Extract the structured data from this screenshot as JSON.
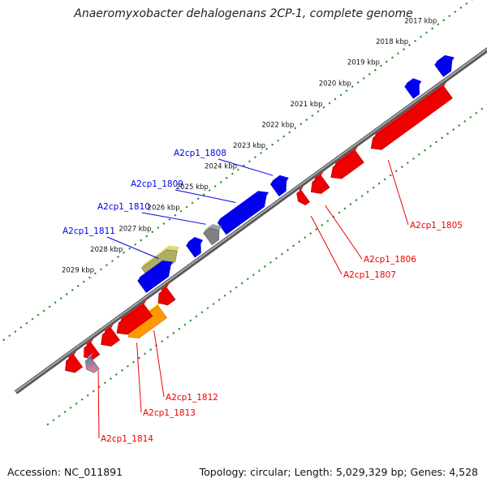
{
  "title": "Anaeromyxobacter dehalogenans 2CP-1, complete genome",
  "footer": {
    "accession": "Accession: NC_011891",
    "summary": "Topology: circular; Length: 5,029,329 bp; Genes: 4,528"
  },
  "colors": {
    "forward_strand": "#0000ee",
    "reverse_strand": "#ee0000",
    "backbone": "#808080",
    "ticks": "#228b22",
    "rna": "#909090",
    "olive": "#b0ad60",
    "orange": "#ff9900"
  },
  "ticks": [
    {
      "label": "2017 kbp",
      "kbp": 2017
    },
    {
      "label": "2018 kbp",
      "kbp": 2018
    },
    {
      "label": "2019 kbp",
      "kbp": 2019
    },
    {
      "label": "2020 kbp",
      "kbp": 2020
    },
    {
      "label": "2021 kbp",
      "kbp": 2021
    },
    {
      "label": "2022 kbp",
      "kbp": 2022
    },
    {
      "label": "2023 kbp",
      "kbp": 2023
    },
    {
      "label": "2024 kbp",
      "kbp": 2024
    },
    {
      "label": "2025 kbp",
      "kbp": 2025
    },
    {
      "label": "2026 kbp",
      "kbp": 2026
    },
    {
      "label": "2027 kbp",
      "kbp": 2027
    },
    {
      "label": "2028 kbp",
      "kbp": 2028
    },
    {
      "label": "2029 kbp",
      "kbp": 2029
    }
  ],
  "genes": [
    {
      "name": "A2cp1_1805",
      "strand": "reverse",
      "start_kbp": 2017.6,
      "end_kbp": 2020.3,
      "color": "#ee0000",
      "labeled": true
    },
    {
      "name": "A2cp1_1806",
      "strand": "reverse",
      "start_kbp": 2021.9,
      "end_kbp": 2022.4,
      "color": "#ee0000",
      "labeled": true
    },
    {
      "name": "A2cp1_1807",
      "strand": "reverse",
      "start_kbp": 2022.6,
      "end_kbp": 2022.85,
      "color": "#ee0000",
      "labeled": true
    },
    {
      "name": "A2cp1_1808",
      "strand": "forward",
      "start_kbp": 2022.8,
      "end_kbp": 2023.2,
      "color": "#0000ee",
      "labeled": true
    },
    {
      "name": "A2cp1_1809",
      "strand": "forward",
      "start_kbp": 2023.5,
      "end_kbp": 2025.05,
      "color": "#0000ee",
      "labeled": true
    },
    {
      "name": "A2cp1_1810",
      "strand": "forward",
      "start_kbp": 2025.15,
      "end_kbp": 2025.55,
      "color": "#808080",
      "labeled": true
    },
    {
      "name": "A2cp1_1811",
      "strand": "forward",
      "start_kbp": 2026.45,
      "end_kbp": 2027.55,
      "color": "#b0ad60",
      "labeled": true
    },
    {
      "name": "A2cp1_1812",
      "strand": "reverse",
      "start_kbp": 2027.8,
      "end_kbp": 2029.0,
      "color": "#ff9900",
      "labeled": true
    },
    {
      "name": "A2cp1_1813",
      "strand": "reverse",
      "start_kbp": 2028.1,
      "end_kbp": 2029.2,
      "color": "#ee0000",
      "labeled": true
    },
    {
      "name": "A2cp1_1814",
      "strand": "reverse",
      "start_kbp": 2029.95,
      "end_kbp": 2030.35,
      "color": "#ee0000",
      "labeled": true
    },
    {
      "name": "",
      "strand": "forward",
      "start_kbp": 2017.0,
      "end_kbp": 2017.45,
      "color": "#0000ee",
      "labeled": false
    },
    {
      "name": "",
      "strand": "forward",
      "start_kbp": 2018.15,
      "end_kbp": 2018.5,
      "color": "#0000ee",
      "labeled": false
    },
    {
      "name": "",
      "strand": "forward",
      "start_kbp": 2025.8,
      "end_kbp": 2026.15,
      "color": "#0000ee",
      "labeled": false
    },
    {
      "name": "",
      "strand": "forward",
      "start_kbp": 2026.85,
      "end_kbp": 2027.85,
      "color": "#0000ee",
      "labeled": false
    },
    {
      "name": "",
      "strand": "reverse",
      "start_kbp": 2020.7,
      "end_kbp": 2021.7,
      "color": "#ee0000",
      "labeled": false
    },
    {
      "name": "",
      "strand": "reverse",
      "start_kbp": 2027.3,
      "end_kbp": 2027.75,
      "color": "#ee0000",
      "labeled": false
    },
    {
      "name": "",
      "strand": "reverse",
      "start_kbp": 2029.25,
      "end_kbp": 2029.75,
      "color": "#ee0000",
      "labeled": false
    },
    {
      "name": "",
      "strand": "reverse",
      "start_kbp": 2030.55,
      "end_kbp": 2031.0,
      "color": "#ee0000",
      "labeled": false
    },
    {
      "name": "",
      "strand": "reverse",
      "start_kbp": 2030.2,
      "end_kbp": 2030.5,
      "color": "#6a7fb3",
      "labeled": false
    }
  ]
}
